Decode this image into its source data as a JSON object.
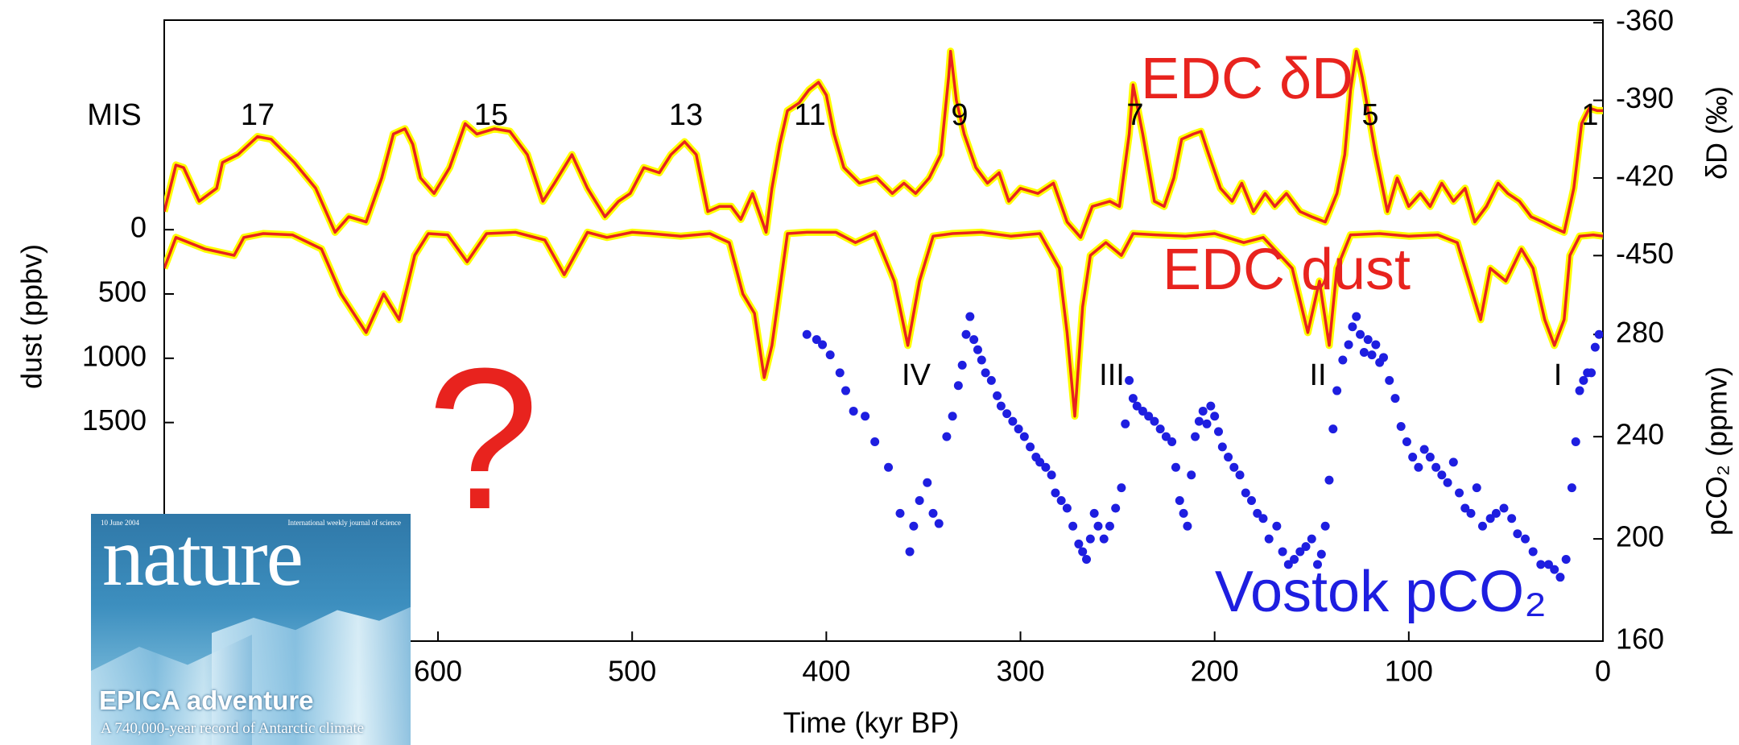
{
  "chart_data": {
    "type": "line",
    "x_label": "Time (kyr BP)",
    "y_label": "dust (ppbv)",
    "y2_label": "δD (‰)",
    "y3_label": "pCO₂ (ppmv)",
    "xlim": [
      741,
      0
    ],
    "xticks": [
      600,
      500,
      400,
      300,
      200,
      100,
      0
    ],
    "ylim": [
      3200,
      -1630
    ],
    "yticks": [
      0,
      500,
      1000,
      1500
    ],
    "y2lim": [
      -599,
      -359
    ],
    "y2ticks": [
      -360,
      -390,
      -420,
      -450
    ],
    "y3lim": [
      160,
      403
    ],
    "y3ticks": [
      160,
      200,
      240,
      280
    ],
    "annotations": [
      "MIS",
      "17",
      "15",
      "13",
      "11",
      "9",
      "7",
      "5",
      "1",
      "IV",
      "III",
      "II",
      "I",
      "?"
    ],
    "series": [
      {
        "name": "EDC δD",
        "type": "line",
        "axis": "y2",
        "color": "#e8231e",
        "halo_color": "#ffff00",
        "x": [
          741,
          735,
          731,
          723,
          714,
          711,
          703,
          693,
          686,
          674,
          663,
          653,
          646,
          637,
          629,
          623,
          617,
          613,
          609,
          602,
          594,
          586,
          580,
          571,
          563,
          554,
          546,
          540,
          531,
          523,
          514,
          507,
          501,
          494,
          486,
          480,
          473,
          467,
          461,
          455,
          449,
          444,
          438,
          431,
          428,
          424,
          420,
          414,
          409,
          404,
          400,
          396,
          391,
          383,
          374,
          366,
          360,
          354,
          347,
          341,
          337,
          336,
          333,
          329,
          323,
          317,
          311,
          306,
          300,
          291,
          283,
          276,
          269,
          263,
          254,
          249,
          244,
          242,
          237,
          231,
          226,
          221,
          217,
          211,
          207,
          203,
          197,
          191,
          186,
          180,
          174,
          169,
          163,
          156,
          150,
          143,
          137,
          133,
          130,
          127,
          124,
          117,
          111,
          106,
          100,
          94,
          89,
          83,
          77,
          71,
          66,
          60,
          54,
          49,
          43,
          37,
          31,
          26,
          20,
          15,
          11,
          7,
          3,
          0
        ],
        "values": [
          -433,
          -415,
          -416,
          -429,
          -424,
          -414,
          -411,
          -404,
          -405,
          -414,
          -424,
          -441,
          -435,
          -437,
          -420,
          -403,
          -401,
          -407,
          -420,
          -426,
          -416,
          -399,
          -403,
          -401,
          -402,
          -411,
          -429,
          -422,
          -411,
          -424,
          -435,
          -429,
          -426,
          -416,
          -418,
          -411,
          -406,
          -411,
          -433,
          -431,
          -431,
          -436,
          -426,
          -441,
          -424,
          -407,
          -394,
          -391,
          -386,
          -383,
          -388,
          -403,
          -416,
          -422,
          -420,
          -426,
          -422,
          -426,
          -420,
          -411,
          -381,
          -371,
          -390,
          -403,
          -416,
          -422,
          -418,
          -429,
          -424,
          -426,
          -422,
          -437,
          -443,
          -431,
          -429,
          -431,
          -403,
          -384,
          -403,
          -429,
          -431,
          -420,
          -405,
          -403,
          -402,
          -411,
          -424,
          -429,
          -422,
          -433,
          -426,
          -431,
          -426,
          -433,
          -435,
          -437,
          -426,
          -411,
          -386,
          -371,
          -381,
          -411,
          -433,
          -420,
          -431,
          -426,
          -431,
          -422,
          -429,
          -424,
          -437,
          -431,
          -422,
          -426,
          -429,
          -435,
          -437,
          -439,
          -441,
          -424,
          -399,
          -393,
          -394,
          -394
        ]
      },
      {
        "name": "EDC dust",
        "type": "line",
        "axis": "y",
        "color": "#e8231e",
        "halo_color": "#ffff00",
        "x": [
          741,
          735,
          720,
          705,
          700,
          690,
          675,
          660,
          650,
          637,
          628,
          620,
          612,
          605,
          595,
          585,
          575,
          560,
          545,
          535,
          523,
          513,
          500,
          490,
          475,
          460,
          450,
          443,
          437,
          432,
          428,
          420,
          410,
          395,
          385,
          375,
          365,
          358,
          352,
          345,
          335,
          320,
          305,
          290,
          280,
          276,
          272,
          268,
          264,
          256,
          248,
          242,
          230,
          215,
          200,
          185,
          175,
          160,
          152,
          146,
          141,
          137,
          130,
          115,
          100,
          85,
          75,
          68,
          63,
          58,
          50,
          42,
          36,
          30,
          25,
          20,
          17,
          12,
          5,
          0
        ],
        "values": [
          300,
          60,
          150,
          200,
          60,
          30,
          40,
          150,
          500,
          800,
          500,
          700,
          200,
          30,
          40,
          250,
          30,
          20,
          80,
          350,
          20,
          60,
          20,
          30,
          50,
          30,
          100,
          500,
          650,
          1150,
          900,
          30,
          20,
          20,
          100,
          30,
          400,
          900,
          400,
          50,
          30,
          20,
          50,
          30,
          300,
          800,
          1450,
          600,
          200,
          100,
          200,
          30,
          40,
          50,
          30,
          100,
          60,
          300,
          800,
          400,
          900,
          300,
          40,
          30,
          50,
          40,
          100,
          450,
          700,
          300,
          400,
          150,
          300,
          700,
          900,
          700,
          200,
          50,
          40,
          50
        ]
      },
      {
        "name": "Vostok pCO₂",
        "type": "scatter",
        "axis": "y3",
        "color": "#1e1ee0",
        "x": [
          410,
          405,
          402,
          398,
          393,
          390,
          386,
          380,
          375,
          368,
          362,
          357,
          355,
          352,
          348,
          345,
          342,
          338,
          335,
          332,
          330,
          328,
          326,
          324,
          322,
          320,
          318,
          315,
          312,
          310,
          307,
          304,
          301,
          298,
          295,
          292,
          290,
          287,
          284,
          282,
          279,
          276,
          273,
          270,
          268,
          266,
          264,
          262,
          260,
          257,
          254,
          251,
          248,
          246,
          244,
          242,
          240,
          237,
          234,
          231,
          228,
          225,
          222,
          220,
          218,
          216,
          214,
          212,
          210,
          208,
          206,
          204,
          202,
          200,
          198,
          196,
          193,
          190,
          187,
          184,
          181,
          178,
          175,
          172,
          168,
          165,
          162,
          159,
          156,
          153,
          150,
          147,
          145,
          143,
          141,
          139,
          137,
          134,
          131,
          129,
          127,
          125,
          123,
          121,
          119,
          117,
          115,
          113,
          110,
          107,
          104,
          101,
          98,
          95,
          92,
          89,
          86,
          83,
          80,
          77,
          74,
          71,
          68,
          65,
          62,
          58,
          55,
          51,
          47,
          44,
          40,
          36,
          32,
          28,
          25,
          22,
          19,
          16,
          14,
          12,
          10,
          8,
          6,
          4,
          2
        ],
        "values": [
          280,
          278,
          276,
          272,
          265,
          258,
          250,
          248,
          238,
          228,
          210,
          195,
          205,
          215,
          222,
          210,
          206,
          240,
          248,
          260,
          268,
          280,
          287,
          278,
          274,
          270,
          265,
          262,
          256,
          252,
          249,
          246,
          243,
          240,
          236,
          232,
          230,
          228,
          225,
          218,
          215,
          212,
          205,
          198,
          195,
          192,
          200,
          210,
          205,
          200,
          205,
          212,
          220,
          245,
          262,
          255,
          252,
          250,
          248,
          246,
          243,
          240,
          238,
          228,
          215,
          210,
          205,
          225,
          240,
          246,
          250,
          245,
          252,
          248,
          242,
          236,
          232,
          228,
          225,
          218,
          215,
          210,
          208,
          200,
          205,
          195,
          190,
          192,
          195,
          197,
          200,
          190,
          194,
          205,
          223,
          243,
          258,
          270,
          276,
          283,
          287,
          280,
          273,
          278,
          272,
          276,
          269,
          271,
          262,
          255,
          244,
          238,
          232,
          228,
          235,
          232,
          228,
          225,
          222,
          230,
          218,
          212,
          210,
          220,
          205,
          208,
          210,
          212,
          208,
          202,
          200,
          195,
          190,
          190,
          188,
          185,
          192,
          220,
          238,
          258,
          262,
          265,
          265,
          275,
          280
        ]
      }
    ]
  },
  "cover": {
    "date": "10 June 2004",
    "tagline": "International weekly journal of science",
    "masthead": "nature",
    "headline": "EPICA adventure",
    "subhead": "A 740,000-year record of Antarctic climate"
  }
}
